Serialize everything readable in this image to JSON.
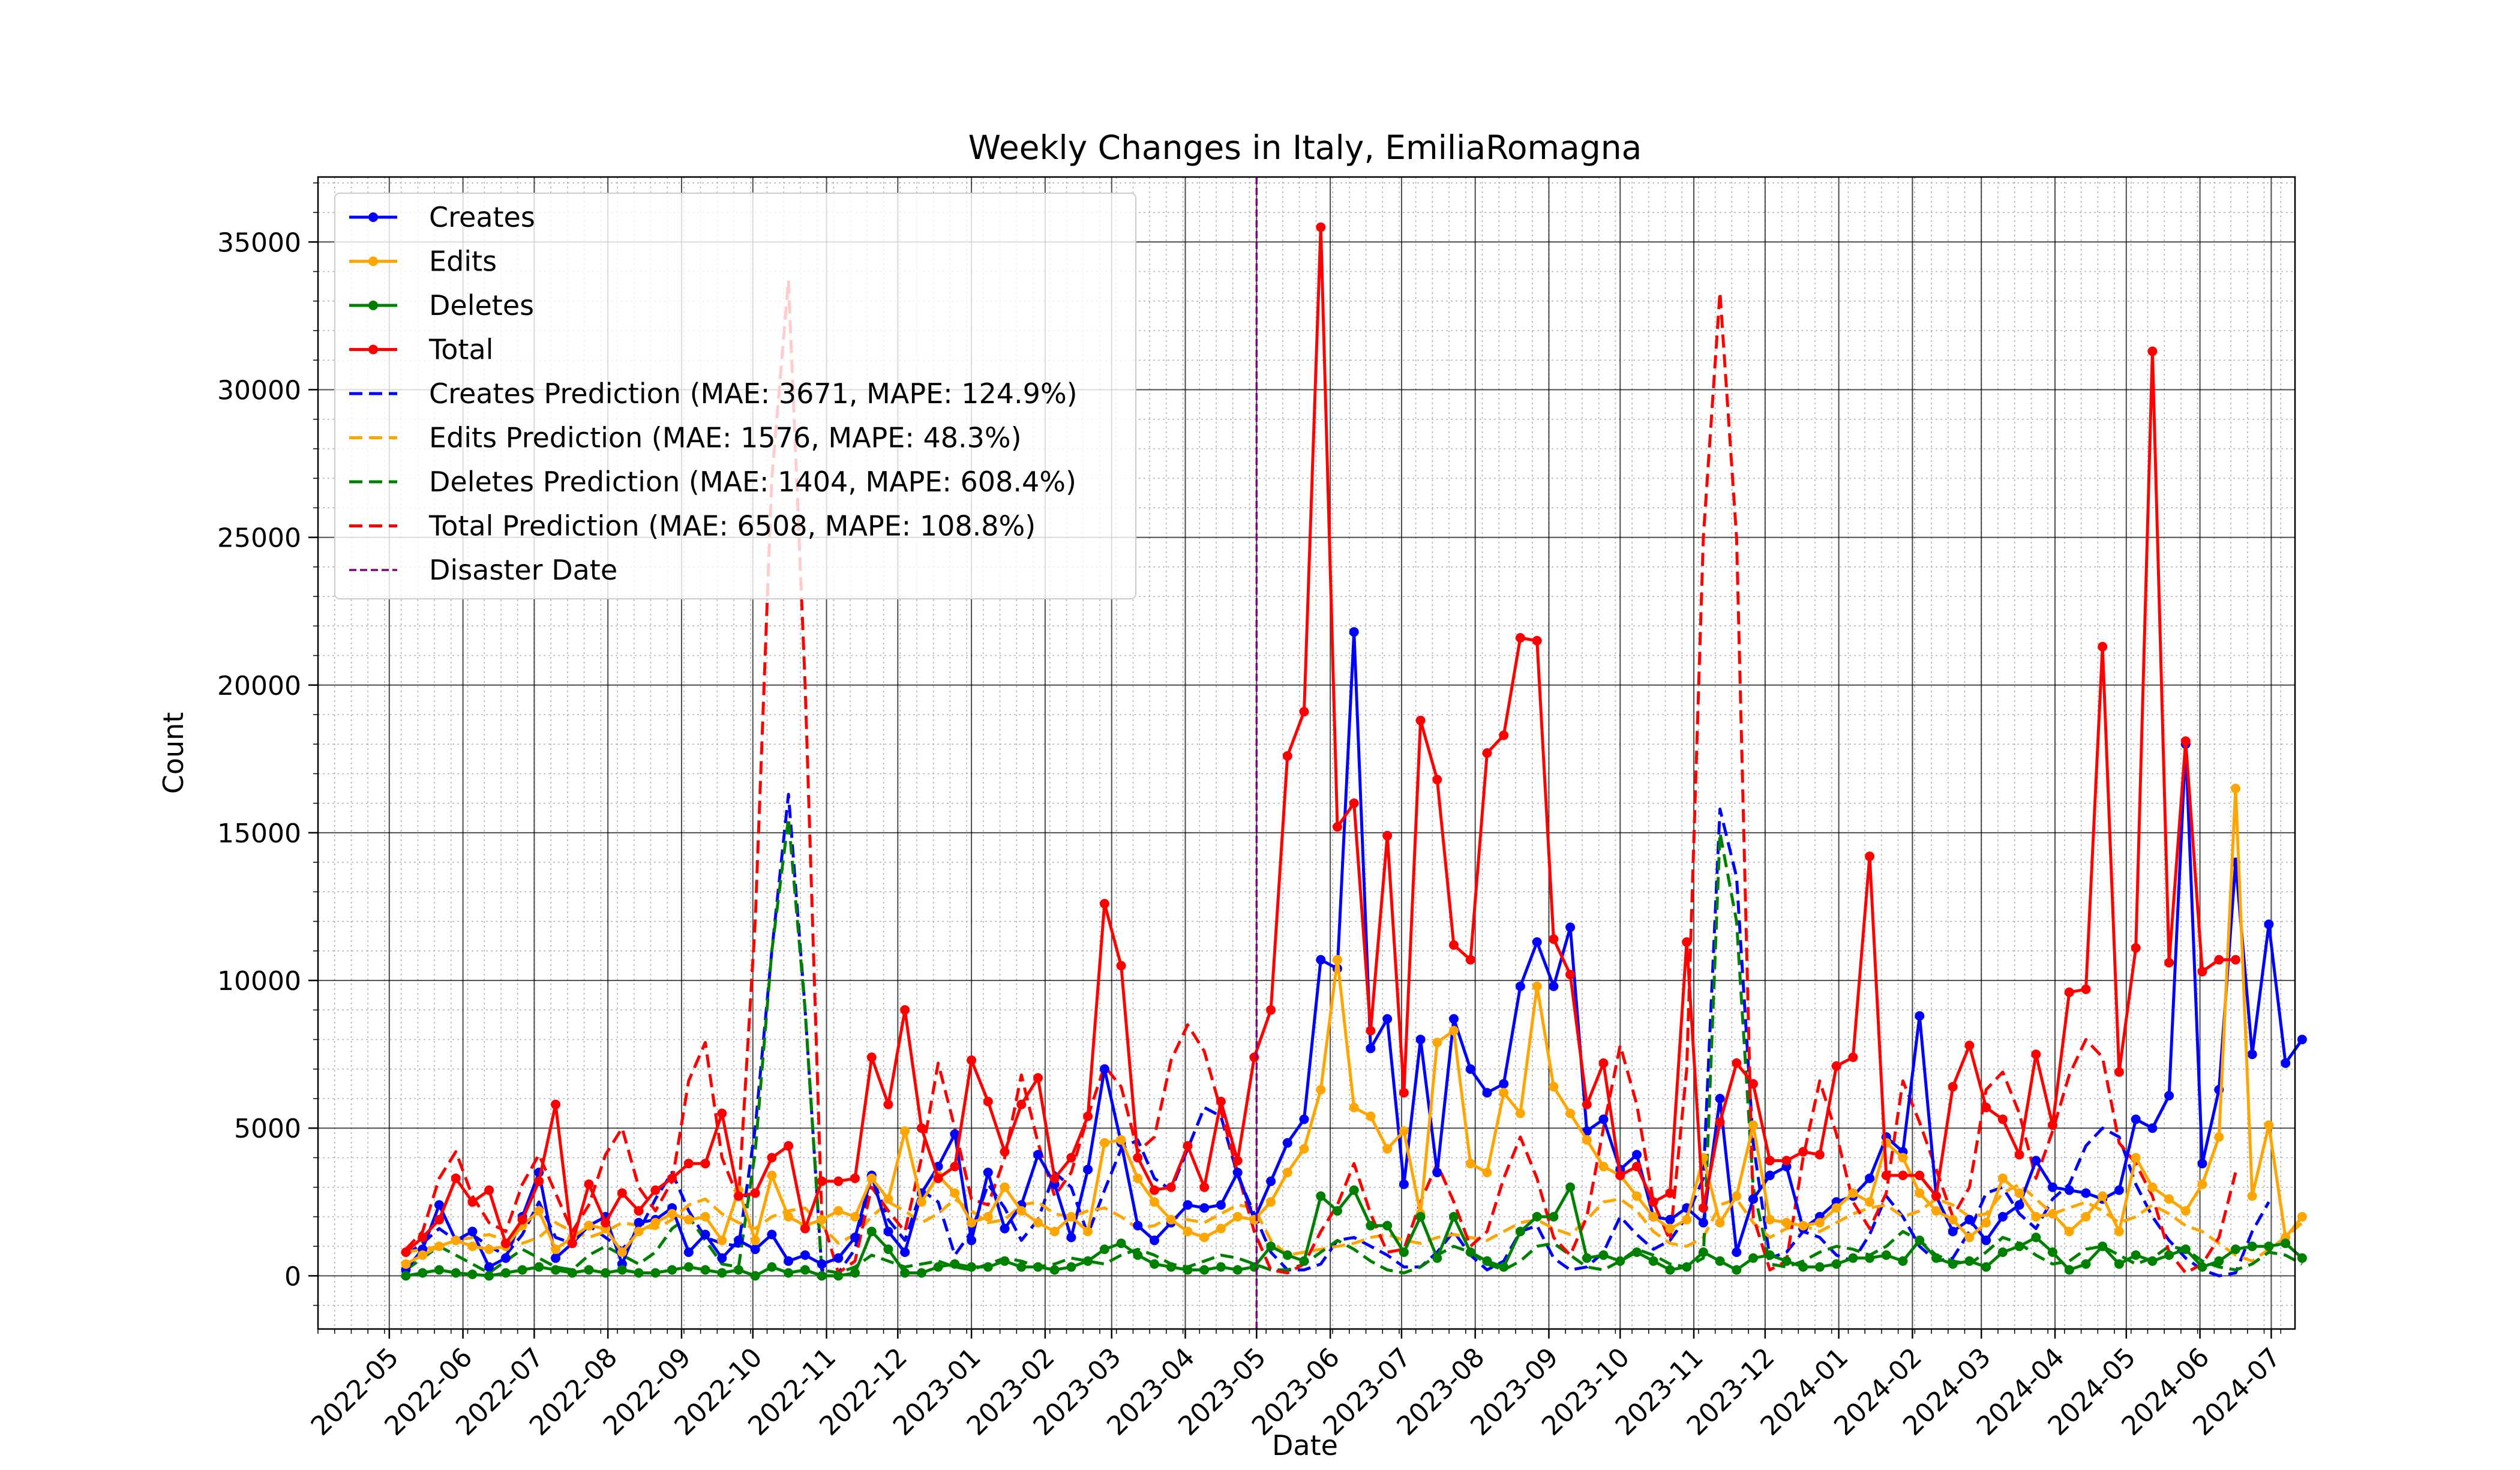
{
  "chart_data": {
    "type": "line",
    "title": "Weekly Changes in Italy, EmiliaRomagna",
    "xlabel": "Date",
    "ylabel": "Count",
    "x_ticks": [
      "2022-05",
      "2022-06",
      "2022-07",
      "2022-08",
      "2022-09",
      "2022-10",
      "2022-11",
      "2022-12",
      "2023-01",
      "2023-02",
      "2023-03",
      "2023-04",
      "2023-05",
      "2023-06",
      "2023-07",
      "2023-08",
      "2023-09",
      "2023-10",
      "2023-11",
      "2023-12",
      "2024-01",
      "2024-02",
      "2024-03",
      "2024-04",
      "2024-05",
      "2024-06",
      "2024-07"
    ],
    "x_range": [
      "2022-04-01",
      "2024-07-11"
    ],
    "y_ticks": [
      0,
      5000,
      10000,
      15000,
      20000,
      25000,
      30000,
      35000
    ],
    "ylim": [
      -1800,
      37200
    ],
    "grid": true,
    "legend_position": "upper-left",
    "disaster_date": "2023-05-01",
    "start_date": "2022-05-08",
    "week_days": 7,
    "series": [
      {
        "name": "Creates",
        "color": "#0000ff",
        "style": "solid-markers",
        "values": [
          200,
          900,
          2400,
          1200,
          1500,
          300,
          600,
          2000,
          3500,
          600,
          1100,
          1700,
          2000,
          400,
          1800,
          1900,
          2300,
          800,
          1400,
          600,
          1200,
          900,
          1400,
          500,
          700,
          400,
          600,
          1300,
          3400,
          1500,
          800,
          2800,
          3700,
          4800,
          1200,
          3500,
          1600,
          2400,
          4100,
          3100,
          1300,
          3600,
          7000,
          4500,
          1700,
          1200,
          1800,
          2400,
          2300,
          2400,
          3500,
          1900,
          3200,
          4500,
          5300,
          10700,
          10400,
          21800,
          7700,
          8700,
          3100,
          8000,
          3500,
          8700,
          7000,
          6200,
          6500,
          9800,
          11300,
          9800,
          11800,
          4900,
          5300,
          3600,
          4100,
          2000,
          1900,
          2300,
          1800,
          6000,
          800,
          2600,
          3400,
          3700,
          1600,
          2000,
          2500,
          2700,
          3300,
          4700,
          4200,
          8800,
          2700,
          1500,
          1900,
          1200,
          2000,
          2400,
          3900,
          3000,
          2900,
          2800,
          2600,
          2900,
          5300,
          5000,
          6100,
          18000,
          3800,
          6300,
          14000,
          7500,
          11900,
          7200,
          8000
        ]
      },
      {
        "name": "Edits",
        "color": "#ffa500",
        "style": "solid-markers",
        "values": [
          400,
          700,
          1000,
          1200,
          1000,
          900,
          1000,
          1700,
          2200,
          900,
          1300,
          1700,
          1600,
          800,
          1500,
          1800,
          2100,
          1900,
          2000,
          1200,
          2900,
          1200,
          3400,
          2000,
          1700,
          1900,
          2200,
          2000,
          3300,
          2600,
          4900,
          2500,
          3400,
          2800,
          1800,
          2000,
          3000,
          2200,
          1800,
          1500,
          2000,
          1500,
          4500,
          4600,
          3300,
          2500,
          1900,
          1500,
          1300,
          1600,
          2000,
          1900,
          2500,
          3500,
          4300,
          6300,
          10700,
          5700,
          5400,
          4300,
          4900,
          2100,
          7900,
          8300,
          3800,
          3500,
          6200,
          5500,
          9800,
          6400,
          5500,
          4600,
          3700,
          3400,
          2700,
          2000,
          1600,
          1900,
          4000,
          1800,
          2700,
          5100,
          1900,
          1800,
          1700,
          1800,
          2300,
          2800,
          2500,
          4500,
          4000,
          2800,
          2200,
          1900,
          1300,
          1800,
          3300,
          2800,
          2000,
          2100,
          1500,
          2000,
          2700,
          1500,
          4000,
          3000,
          2600,
          2200,
          3100,
          4700,
          16500,
          2700,
          5100,
          1300,
          2000
        ]
      },
      {
        "name": "Deletes",
        "color": "#008000",
        "style": "solid-markers",
        "values": [
          0,
          100,
          200,
          100,
          50,
          0,
          100,
          200,
          300,
          200,
          100,
          200,
          100,
          200,
          100,
          100,
          200,
          300,
          200,
          100,
          200,
          0,
          300,
          100,
          200,
          0,
          0,
          100,
          1500,
          900,
          100,
          100,
          300,
          400,
          300,
          300,
          500,
          300,
          300,
          200,
          300,
          500,
          900,
          1100,
          700,
          400,
          300,
          200,
          200,
          300,
          200,
          300,
          1000,
          700,
          500,
          2700,
          2200,
          2900,
          1700,
          1700,
          800,
          2000,
          600,
          2000,
          800,
          500,
          300,
          1500,
          2000,
          2000,
          3000,
          600,
          700,
          500,
          800,
          500,
          200,
          300,
          800,
          500,
          200,
          600,
          700,
          500,
          300,
          300,
          400,
          600,
          600,
          700,
          500,
          1200,
          600,
          400,
          500,
          300,
          800,
          1000,
          1300,
          800,
          200,
          400,
          1000,
          400,
          700,
          500,
          700,
          900,
          300,
          500,
          900,
          1000,
          1000,
          1100,
          600
        ]
      },
      {
        "name": "Total",
        "color": "#ff0000",
        "style": "solid-markers",
        "values": [
          800,
          1300,
          1900,
          3300,
          2500,
          2900,
          1100,
          1900,
          3200,
          5800,
          1100,
          3100,
          1800,
          2800,
          2200,
          2900,
          3300,
          3800,
          3800,
          5500,
          2700,
          2800,
          4000,
          4400,
          1600,
          3200,
          3200,
          3300,
          7400,
          5800,
          9000,
          5000,
          3300,
          3700,
          7300,
          5900,
          4200,
          5800,
          6700,
          3300,
          4000,
          5400,
          12600,
          10500,
          4000,
          2900,
          3000,
          4400,
          3000,
          5900,
          3900,
          7400,
          9000,
          17600,
          19100,
          35500,
          15200,
          16000,
          8300,
          14900,
          6200,
          18800,
          16800,
          11200,
          10700,
          17700,
          18300,
          21600,
          21500,
          11400,
          10200,
          5800,
          7200,
          3400,
          3700,
          2500,
          2800,
          11300,
          2300,
          5200,
          7200,
          6500,
          3900,
          3900,
          4200,
          4100,
          7100,
          7400,
          14200,
          3400,
          3400,
          3400,
          2700,
          6400,
          7800,
          5700,
          5300,
          4100,
          7500,
          5100,
          9600,
          9700,
          21300,
          6900,
          11100,
          31300,
          10600,
          18100,
          10300,
          10700,
          10700
        ]
      },
      {
        "name": "Creates Prediction (MAE: 3671, MAPE: 124.9%)",
        "color": "#0000ff",
        "style": "dashed",
        "start_date": "2022-05-08",
        "values": [
          700,
          1100,
          1600,
          1200,
          1400,
          1000,
          700,
          1400,
          2500,
          1300,
          1100,
          1700,
          1300,
          900,
          1500,
          2600,
          3500,
          2200,
          1300,
          1100,
          1000,
          5000,
          11000,
          16300,
          9000,
          200,
          100,
          900,
          3400,
          1900,
          1200,
          2900,
          2500,
          700,
          1500,
          3100,
          2300,
          1200,
          1900,
          3500,
          3000,
          1400,
          2900,
          4300,
          4600,
          3300,
          2900,
          4300,
          5700,
          5400,
          3400,
          2100,
          800,
          200,
          200,
          400,
          1200,
          1300,
          1000,
          700,
          300,
          300,
          800,
          1500,
          700,
          200,
          500,
          1500,
          1700,
          600,
          200,
          300,
          800,
          2000,
          1400,
          900,
          1200,
          2000,
          3300,
          15800,
          13500,
          4500,
          600,
          800,
          1500,
          1300,
          700,
          500,
          1400,
          2700,
          2000,
          1000,
          500,
          600,
          1500,
          2800,
          3000,
          2100,
          1600,
          2600,
          3100,
          4400,
          5000,
          4700,
          3100,
          2000,
          1200,
          600,
          200,
          0,
          100,
          1500,
          2500
        ]
      },
      {
        "name": "Edits Prediction (MAE: 1576, MAPE: 48.3%)",
        "color": "#ffa500",
        "style": "dashed",
        "start_date": "2022-05-08",
        "values": [
          800,
          900,
          1000,
          1200,
          1300,
          1400,
          1200,
          1100,
          1300,
          1800,
          1500,
          1300,
          1500,
          1800,
          1700,
          1600,
          1900,
          2400,
          2600,
          2100,
          1800,
          1600,
          2000,
          2200,
          2300,
          1700,
          1100,
          1400,
          2000,
          2500,
          2200,
          1800,
          2100,
          2600,
          2200,
          1800,
          1900,
          2400,
          2500,
          2100,
          2000,
          2200,
          2300,
          2000,
          1600,
          1700,
          2000,
          1900,
          1800,
          2100,
          2400,
          2300,
          1200,
          700,
          800,
          900,
          1000,
          1100,
          1300,
          1400,
          1200,
          1100,
          1300,
          1400,
          1300,
          1200,
          1500,
          1800,
          1900,
          1600,
          1400,
          1900,
          2500,
          2600,
          2200,
          1500,
          1100,
          1000,
          1300,
          2400,
          2600,
          1800,
          1300,
          1600,
          1700,
          1500,
          1800,
          2100,
          2300,
          2400,
          2000,
          2200,
          2600,
          2400,
          2000,
          2100,
          2800,
          3100,
          2600,
          2100,
          2300,
          2500,
          2200,
          1800,
          2000,
          2400,
          2100,
          1700,
          1500,
          1100,
          700,
          500,
          900,
          1300,
          1800
        ]
      },
      {
        "name": "Deletes Prediction (MAE: 1404, MAPE: 608.4%)",
        "color": "#008000",
        "style": "dashed",
        "start_date": "2022-05-08",
        "values": [
          200,
          600,
          1000,
          700,
          400,
          100,
          500,
          900,
          600,
          300,
          200,
          700,
          1000,
          700,
          400,
          800,
          1600,
          2000,
          1200,
          400,
          300,
          4200,
          11000,
          15500,
          9000,
          200,
          100,
          300,
          700,
          500,
          300,
          400,
          500,
          300,
          200,
          400,
          600,
          500,
          300,
          400,
          600,
          500,
          400,
          700,
          900,
          700,
          400,
          300,
          500,
          700,
          600,
          400,
          200,
          200,
          400,
          800,
          1200,
          900,
          500,
          200,
          100,
          300,
          700,
          1000,
          800,
          400,
          200,
          500,
          1000,
          1100,
          700,
          300,
          200,
          500,
          900,
          700,
          400,
          300,
          600,
          15000,
          12000,
          3000,
          400,
          300,
          500,
          800,
          1000,
          900,
          700,
          1000,
          1500,
          1200,
          700,
          500,
          400,
          800,
          1300,
          1100,
          700,
          400,
          500,
          900,
          1000,
          700,
          400,
          600,
          1000,
          900,
          500,
          300,
          200,
          400,
          800,
          700,
          400
        ]
      },
      {
        "name": "Total Prediction (MAE: 6508, MAPE: 108.8%)",
        "color": "#ff0000",
        "style": "dashed",
        "start_date": "2022-05-08",
        "values": [
          900,
          1500,
          3300,
          4200,
          2700,
          1800,
          1500,
          3100,
          4100,
          2800,
          1500,
          2400,
          4100,
          5000,
          3000,
          2200,
          3200,
          6600,
          7900,
          4000,
          2600,
          12000,
          27000,
          33700,
          20000,
          2000,
          100,
          500,
          3000,
          2200,
          1500,
          4000,
          7200,
          5000,
          2600,
          2400,
          4000,
          6800,
          4500,
          2700,
          3500,
          5400,
          7100,
          6400,
          4200,
          4700,
          7300,
          8500,
          7600,
          5600,
          3500,
          1500,
          200,
          100,
          400,
          1500,
          2400,
          3800,
          2100,
          800,
          900,
          2500,
          3800,
          2500,
          1000,
          1500,
          3300,
          4700,
          3300,
          1300,
          700,
          2000,
          5000,
          7800,
          5800,
          2500,
          1200,
          7000,
          25000,
          33300,
          25000,
          2000,
          200,
          500,
          4000,
          6600,
          4800,
          2500,
          1600,
          2800,
          6600,
          5200,
          3600,
          2000,
          3000,
          6300,
          6900,
          5500,
          3300,
          4900,
          6800,
          8000,
          7400,
          4500,
          3800,
          2700,
          800,
          100,
          400,
          1300,
          3500
        ]
      },
      {
        "name": "Disaster Date",
        "color": "#800080",
        "style": "vertical-dashed"
      }
    ]
  }
}
